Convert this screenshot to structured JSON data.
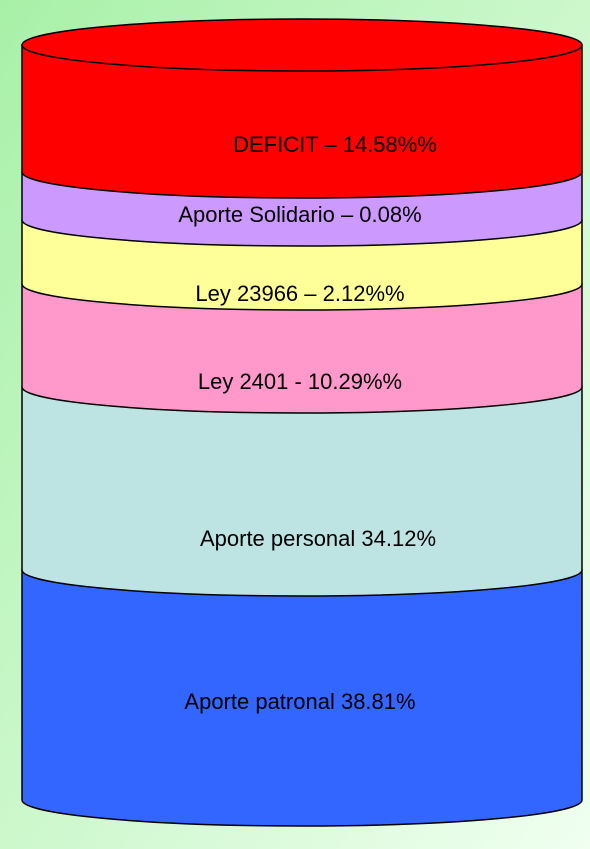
{
  "segments": [
    {
      "label": "DEFICIT – 14.58%%"
    },
    {
      "label": "Aporte Solidario – 0.08%"
    },
    {
      "label": "Ley 23966 – 2.12%%"
    },
    {
      "label": "Ley 2401 -  10.29%%"
    },
    {
      "label": "Aporte personal 34.12%"
    },
    {
      "label": "Aporte patronal 38.81%"
    }
  ]
}
